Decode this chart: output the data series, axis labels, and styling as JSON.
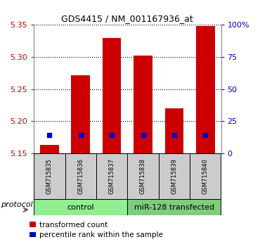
{
  "title": "GDS4415 / NM_001167936_at",
  "samples": [
    "GSM715835",
    "GSM715836",
    "GSM715837",
    "GSM715838",
    "GSM715839",
    "GSM715840"
  ],
  "transformed_counts": [
    5.163,
    5.272,
    5.33,
    5.302,
    5.22,
    5.348
  ],
  "percentile_values": [
    5.178,
    5.178,
    5.178,
    5.178,
    5.178,
    5.178
  ],
  "bar_bottom": 5.15,
  "ylim_left": [
    5.15,
    5.35
  ],
  "ylim_right": [
    0,
    100
  ],
  "right_ticks": [
    0,
    25,
    50,
    75,
    100
  ],
  "right_tick_labels": [
    "0",
    "25",
    "50",
    "75",
    "100%"
  ],
  "left_ticks": [
    5.15,
    5.2,
    5.25,
    5.3,
    5.35
  ],
  "bar_color": "#cc0000",
  "percentile_color": "#0000cc",
  "bar_width": 0.6,
  "group_box_color": "#cccccc",
  "group_label_bg_control": "#90ee90",
  "group_label_bg_transfected": "#7dcd7d",
  "legend_red_label": "transformed count",
  "legend_blue_label": "percentile rank within the sample",
  "ylabel_left_color": "#cc0000",
  "ylabel_right_color": "#0000cc",
  "protocol_label": "protocol",
  "n_control": 3,
  "n_transfected": 3
}
